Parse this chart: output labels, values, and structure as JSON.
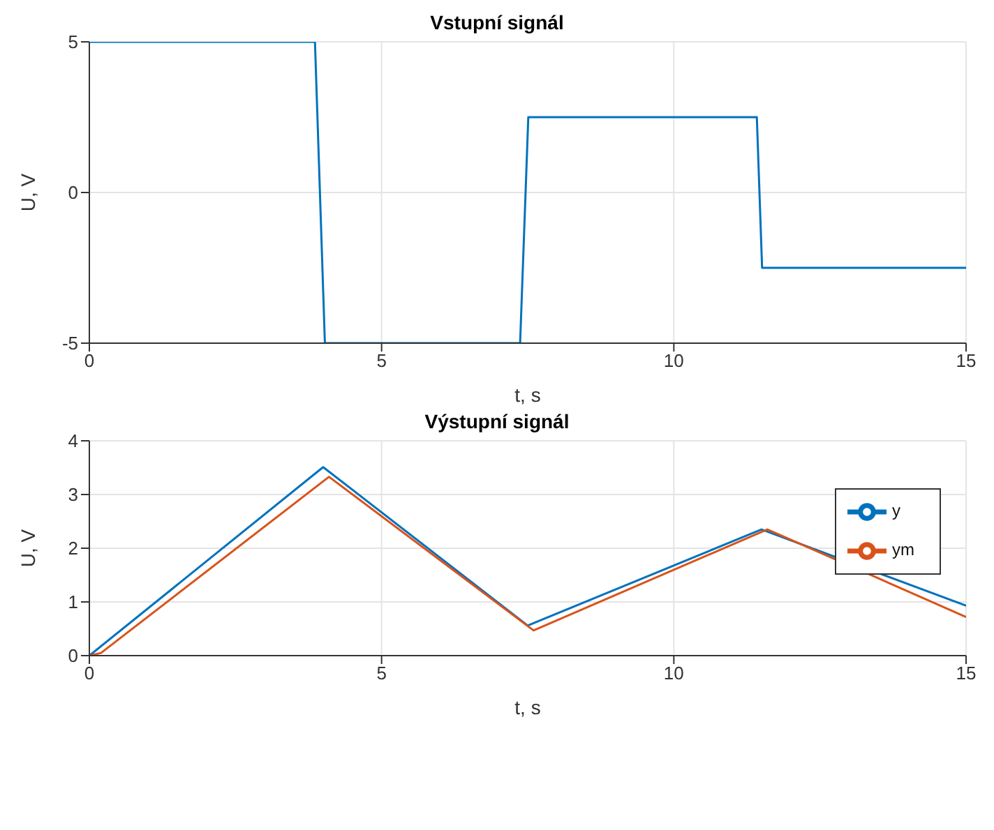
{
  "chart_data": [
    {
      "type": "line",
      "title": "Vstupní signál",
      "xlabel": "t, s",
      "ylabel": "U, V",
      "xlim": [
        0,
        15
      ],
      "xticks": [
        0,
        5,
        10,
        15
      ],
      "ylim": [
        -5,
        5
      ],
      "yticks": [
        -5,
        0,
        5
      ],
      "grid": true,
      "marker": "none",
      "line_style": "solid",
      "legend": false,
      "series": [
        {
          "color": "#0072bd",
          "x": [
            0,
            3.86,
            4.03,
            7.37,
            7.51,
            11.42,
            11.51,
            15
          ],
          "values": [
            5,
            5,
            -5,
            -5,
            2.5,
            2.5,
            -2.5,
            -2.5
          ]
        }
      ]
    },
    {
      "type": "line",
      "title": "Výstupní signál",
      "xlabel": "t, s",
      "ylabel": "U, V",
      "xlim": [
        0,
        15
      ],
      "xticks": [
        0,
        5,
        10,
        15
      ],
      "ylim": [
        0,
        4
      ],
      "yticks": [
        0,
        1,
        2,
        3,
        4
      ],
      "grid": true,
      "marker": "none",
      "line_style": "solid",
      "legend": "top right",
      "series": [
        {
          "name": "y",
          "color": "#0072bd",
          "x": [
            0,
            4,
            7.5,
            11.5,
            15
          ],
          "values": [
            0,
            3.51,
            0.56,
            2.35,
            0.93
          ]
        },
        {
          "name": "ym",
          "color": "#d95319",
          "x": [
            0,
            0.2,
            4.1,
            7.6,
            11.6,
            15
          ],
          "values": [
            0,
            0.05,
            3.33,
            0.47,
            2.35,
            0.72
          ]
        }
      ]
    }
  ]
}
